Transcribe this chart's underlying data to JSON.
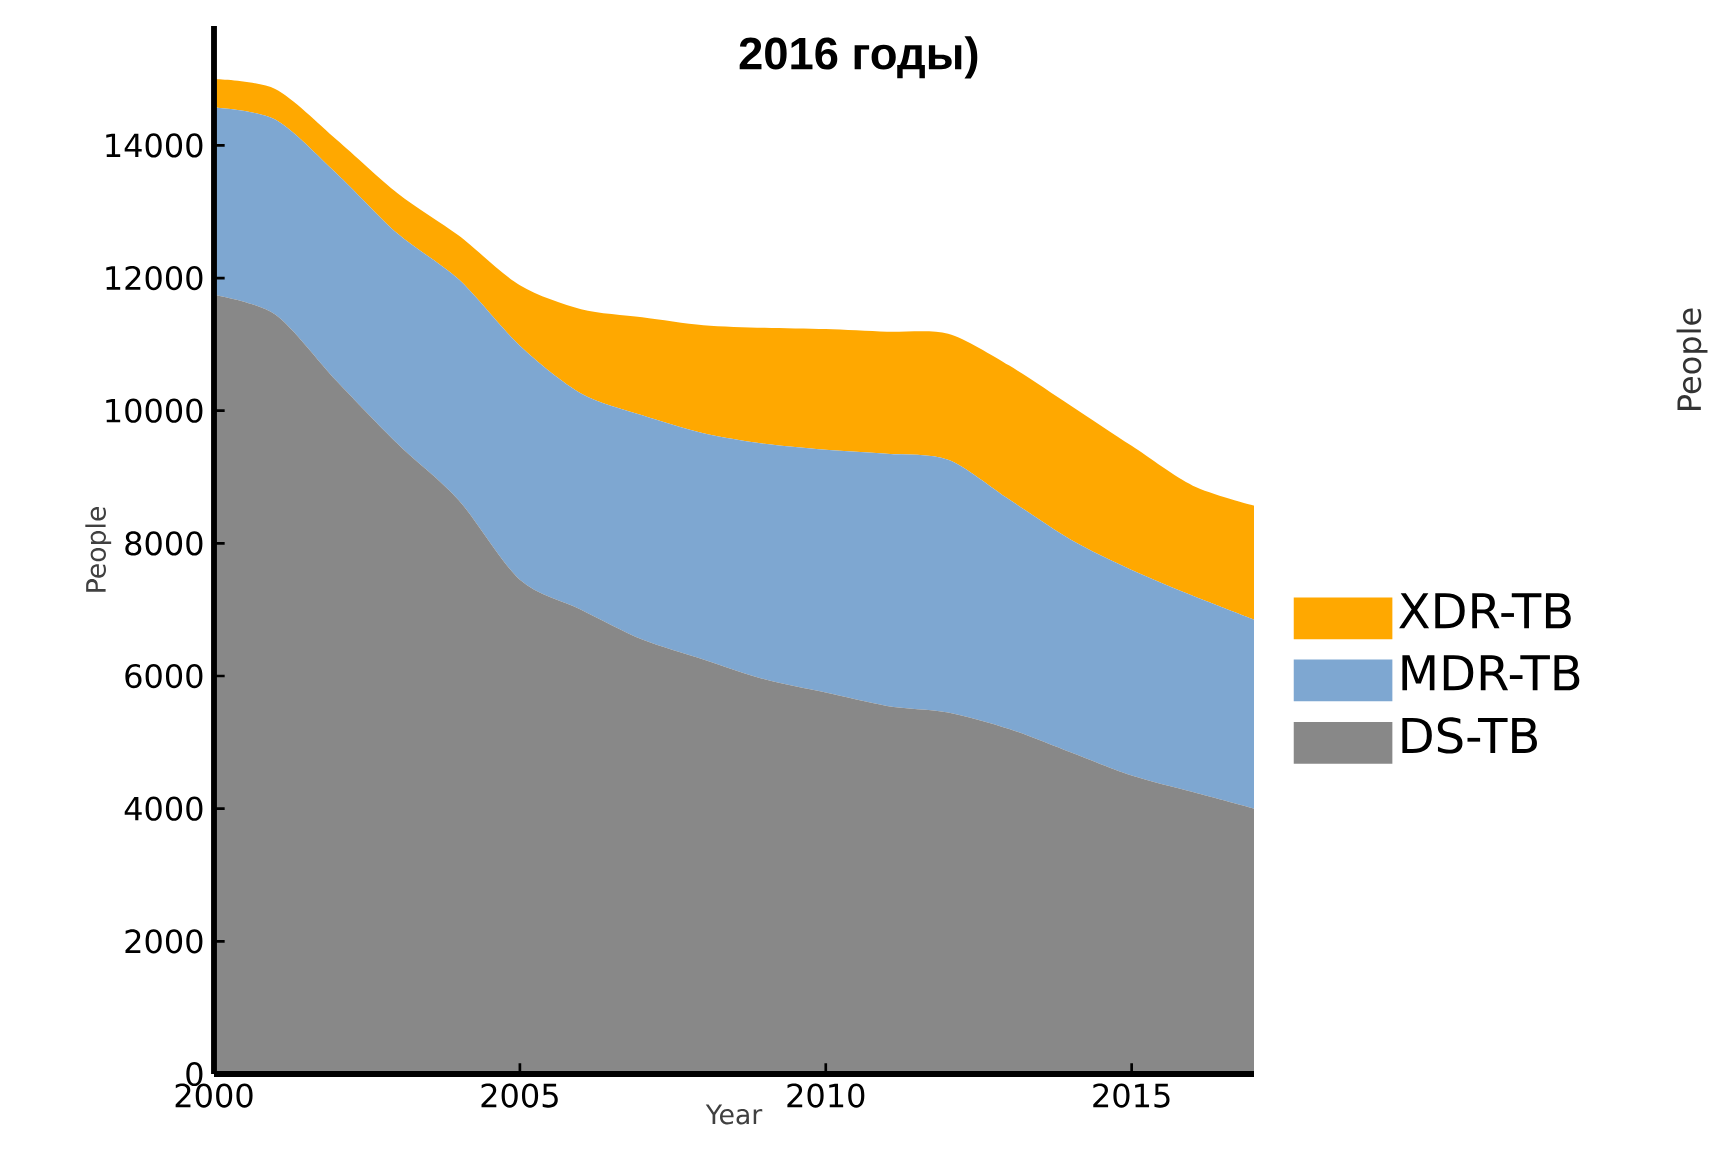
{
  "chart_data": {
    "type": "area",
    "title": "2016 годы)",
    "xlabel": "Year",
    "ylabel": "People",
    "stacked": true,
    "legend": "right",
    "x": [
      2000,
      2001,
      2002,
      2003,
      2004,
      2005,
      2006,
      2007,
      2008,
      2009,
      2010,
      2011,
      2012,
      2013,
      2014,
      2015,
      2016,
      2017
    ],
    "series": [
      {
        "name": "DS-TB",
        "color": "#888888",
        "values": [
          11750,
          11450,
          10450,
          9500,
          8650,
          7450,
          7000,
          6550,
          6250,
          5950,
          5750,
          5550,
          5450,
          5200,
          4850,
          4500,
          4250,
          4000
        ]
      },
      {
        "name": "MDR-TB",
        "color": "#7ea7d1",
        "values": [
          2820,
          2940,
          3130,
          3170,
          3330,
          3530,
          3260,
          3380,
          3410,
          3550,
          3660,
          3800,
          3810,
          3460,
          3210,
          3100,
          2960,
          2850
        ]
      },
      {
        "name": "XDR-TB",
        "color": "#ffa800",
        "values": [
          430,
          460,
          510,
          610,
          660,
          910,
          1270,
          1480,
          1630,
          1750,
          1820,
          1840,
          1900,
          2020,
          2020,
          1870,
          1660,
          1720
        ]
      }
    ],
    "xlim": [
      2000,
      2017
    ],
    "xticks": [
      2000,
      2005,
      2010,
      2015
    ],
    "ylim": [
      0,
      15800
    ],
    "yticks": [
      0,
      2000,
      4000,
      6000,
      8000,
      10000,
      12000,
      14000
    ],
    "annotations": [
      "People"
    ]
  }
}
